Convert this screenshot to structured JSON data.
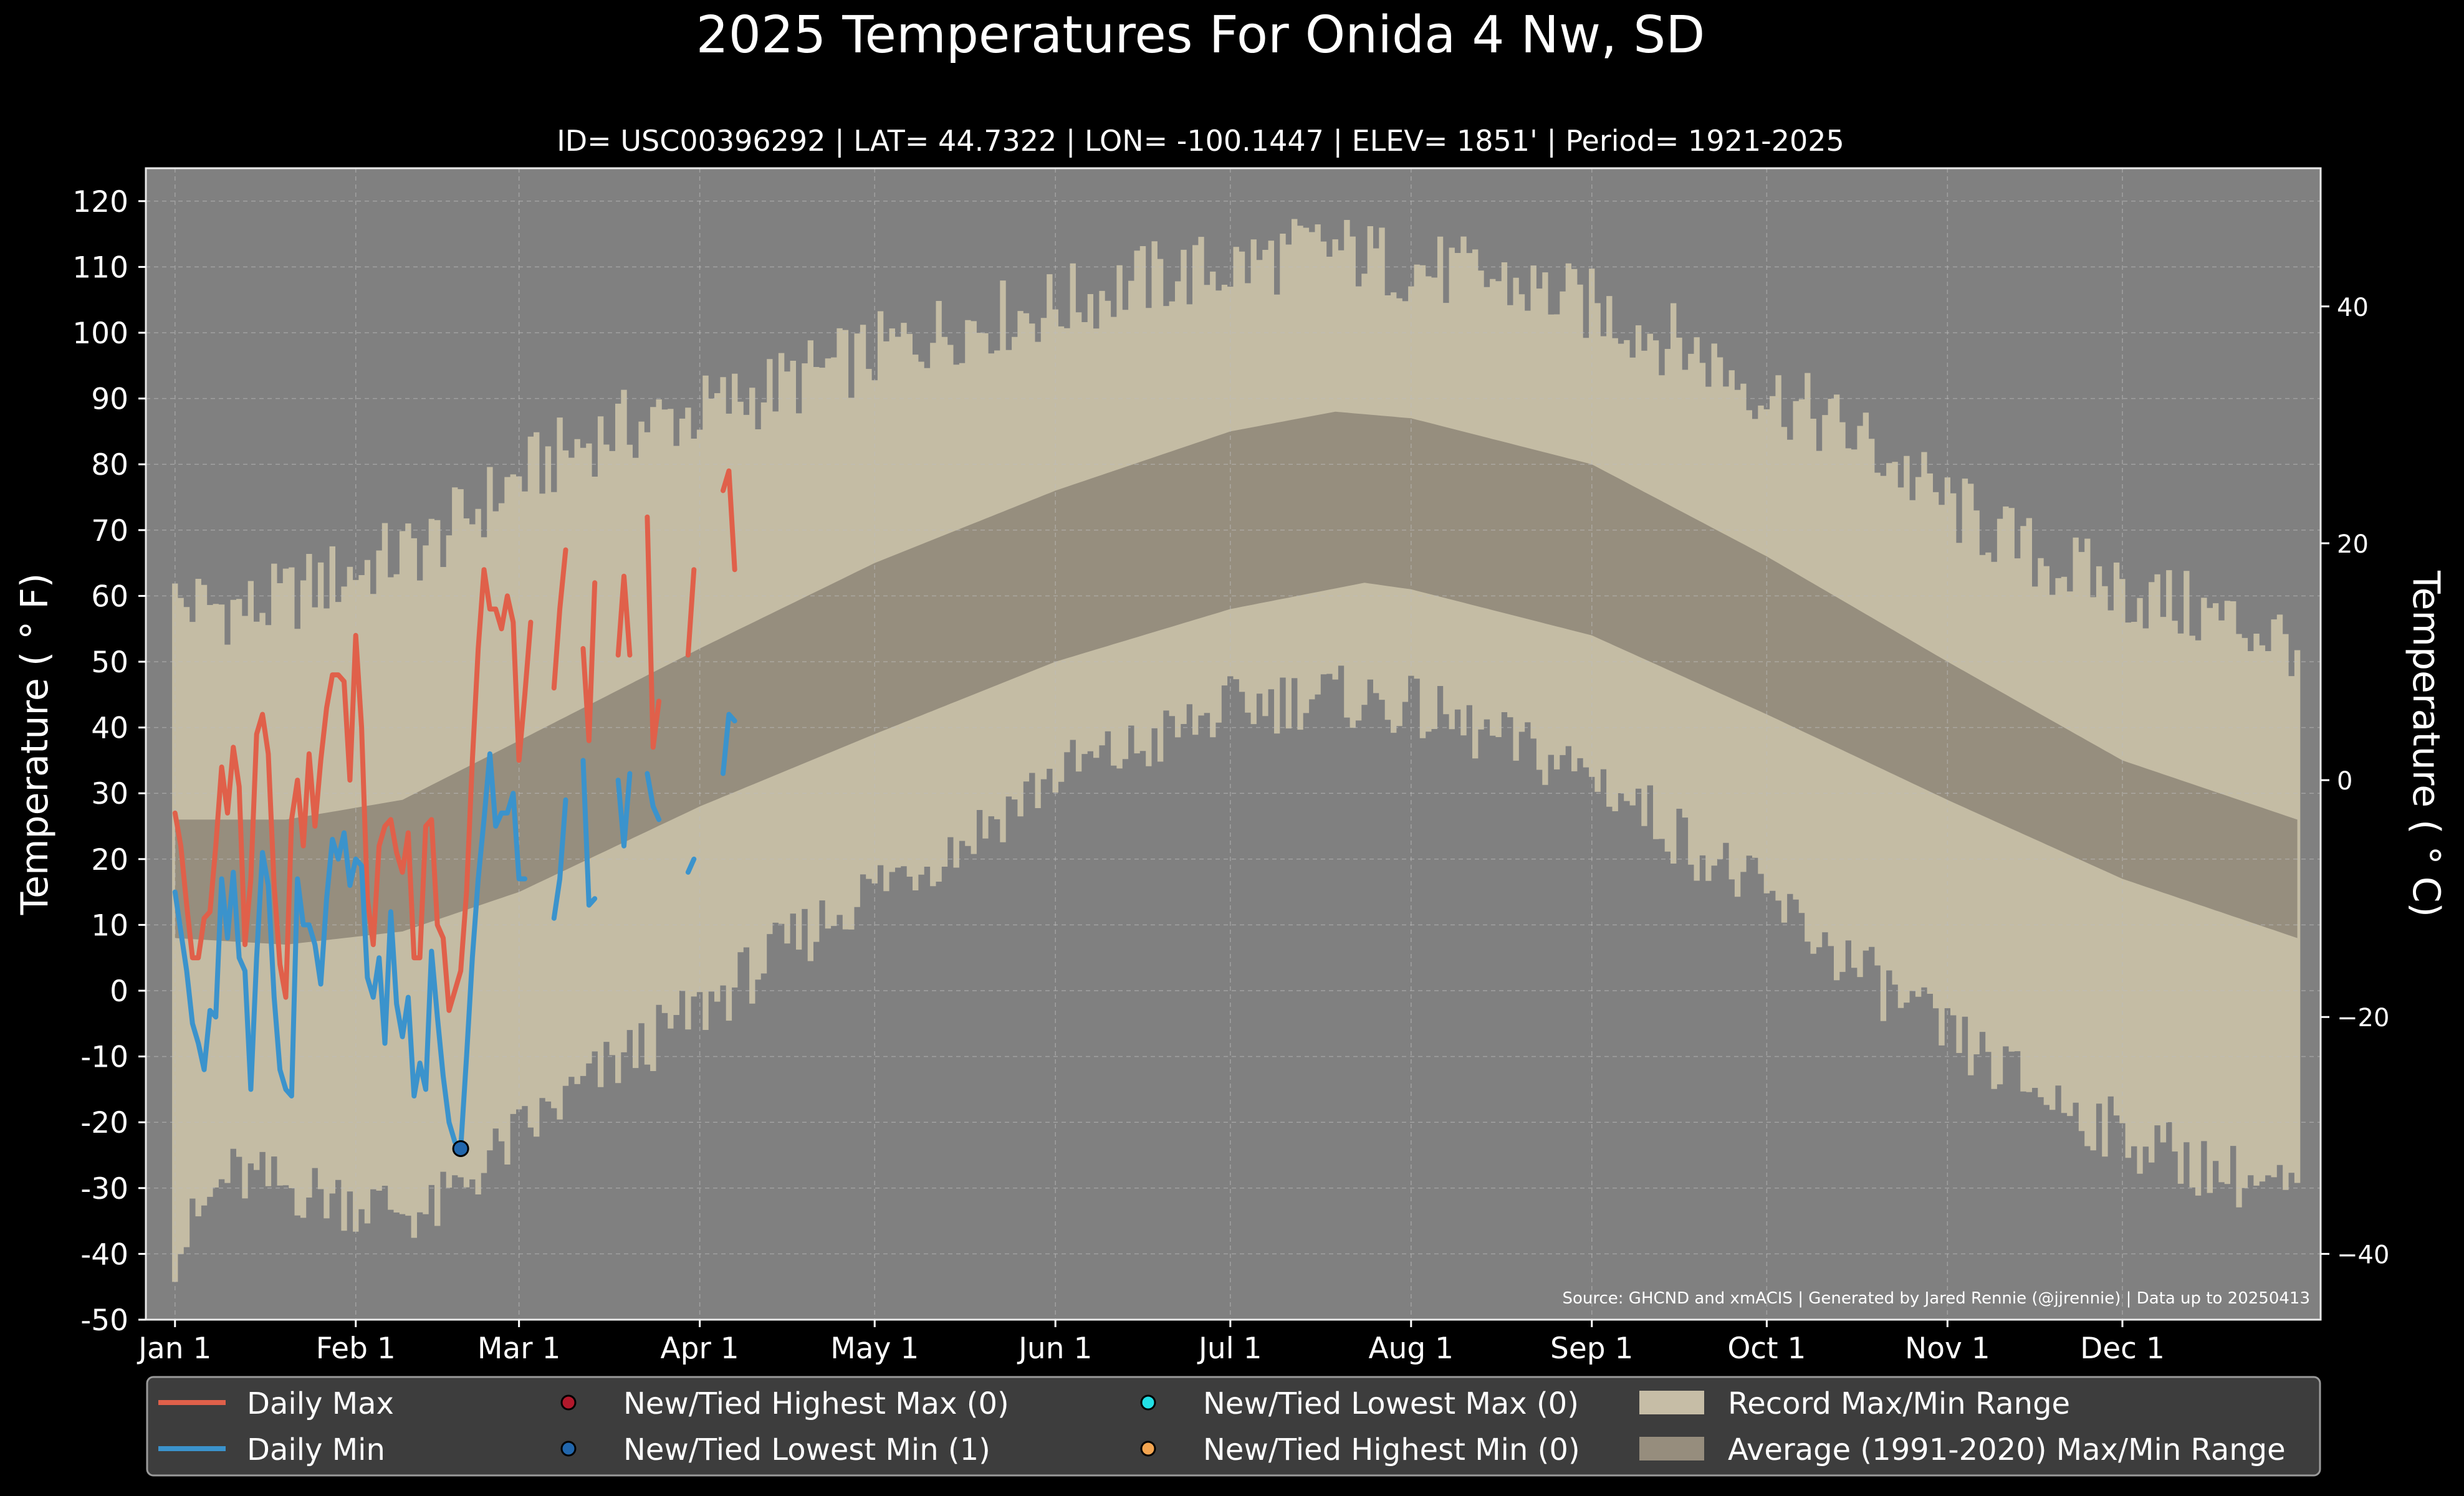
{
  "chart_data": {
    "type": "area",
    "title": "2025 Temperatures For Onida 4 Nw, SD",
    "subtitle": "ID= USC00396292 | LAT= 44.7322 | LON= -100.1447 | ELEV= 1851' | Period= 1921-2025",
    "ylabel_left": "Temperature ( ° F)",
    "ylabel_right": "Temperature ( ° C)",
    "source_note": "Source: GHCND and xmACIS | Generated by Jared Rennie (@jjrennie) | Data up to 20250413",
    "ylim": [
      -50,
      125
    ],
    "xlim_day": [
      -4,
      369
    ],
    "yticks": [
      -50,
      -40,
      -30,
      -20,
      -10,
      0,
      10,
      20,
      30,
      40,
      50,
      60,
      70,
      80,
      90,
      100,
      110,
      120
    ],
    "yticks_c": [
      -40,
      -20,
      0,
      20,
      40
    ],
    "month_ticks": [
      {
        "label": "Jan 1",
        "day": 1
      },
      {
        "label": "Feb 1",
        "day": 32
      },
      {
        "label": "Mar 1",
        "day": 60
      },
      {
        "label": "Apr 1",
        "day": 91
      },
      {
        "label": "May 1",
        "day": 121
      },
      {
        "label": "Jun 1",
        "day": 152
      },
      {
        "label": "Jul 1",
        "day": 182
      },
      {
        "label": "Aug 1",
        "day": 213
      },
      {
        "label": "Sep 1",
        "day": 244
      },
      {
        "label": "Oct 1",
        "day": 274
      },
      {
        "label": "Nov 1",
        "day": 305
      },
      {
        "label": "Dec 1",
        "day": 335
      }
    ],
    "record_max_anchors": [
      [
        1,
        59
      ],
      [
        15,
        58
      ],
      [
        32,
        64
      ],
      [
        45,
        68
      ],
      [
        60,
        78
      ],
      [
        75,
        85
      ],
      [
        91,
        88
      ],
      [
        105,
        92
      ],
      [
        121,
        97
      ],
      [
        135,
        101
      ],
      [
        152,
        104
      ],
      [
        167,
        108
      ],
      [
        182,
        110
      ],
      [
        198,
        113
      ],
      [
        213,
        110
      ],
      [
        228,
        108
      ],
      [
        244,
        104
      ],
      [
        260,
        98
      ],
      [
        274,
        91
      ],
      [
        290,
        84
      ],
      [
        305,
        74
      ],
      [
        320,
        66
      ],
      [
        335,
        61
      ],
      [
        350,
        57
      ],
      [
        365,
        53
      ]
    ],
    "record_min_anchors": [
      [
        1,
        -40
      ],
      [
        10,
        -28
      ],
      [
        32,
        -32
      ],
      [
        45,
        -34
      ],
      [
        52,
        -28
      ],
      [
        60,
        -22
      ],
      [
        75,
        -12
      ],
      [
        91,
        -3
      ],
      [
        105,
        6
      ],
      [
        121,
        16
      ],
      [
        135,
        22
      ],
      [
        152,
        33
      ],
      [
        167,
        37
      ],
      [
        182,
        43
      ],
      [
        198,
        45
      ],
      [
        213,
        43
      ],
      [
        228,
        38
      ],
      [
        244,
        33
      ],
      [
        260,
        23
      ],
      [
        274,
        14
      ],
      [
        290,
        3
      ],
      [
        305,
        -7
      ],
      [
        320,
        -15
      ],
      [
        335,
        -22
      ],
      [
        350,
        -27
      ],
      [
        365,
        -31
      ]
    ],
    "normal_max_anchors": [
      [
        1,
        26
      ],
      [
        20,
        26
      ],
      [
        40,
        29
      ],
      [
        60,
        38
      ],
      [
        91,
        52
      ],
      [
        121,
        65
      ],
      [
        152,
        76
      ],
      [
        182,
        85
      ],
      [
        200,
        88
      ],
      [
        213,
        87
      ],
      [
        244,
        80
      ],
      [
        274,
        66
      ],
      [
        305,
        50
      ],
      [
        335,
        35
      ],
      [
        365,
        26
      ]
    ],
    "normal_min_anchors": [
      [
        1,
        8
      ],
      [
        20,
        7
      ],
      [
        40,
        9
      ],
      [
        60,
        15
      ],
      [
        91,
        28
      ],
      [
        121,
        39
      ],
      [
        152,
        50
      ],
      [
        182,
        58
      ],
      [
        205,
        62
      ],
      [
        213,
        61
      ],
      [
        244,
        54
      ],
      [
        274,
        42
      ],
      [
        305,
        29
      ],
      [
        335,
        17
      ],
      [
        365,
        8
      ]
    ],
    "series": [
      {
        "name": "Daily Max",
        "color": "#e0604a",
        "points": [
          [
            1,
            27
          ],
          [
            2,
            22
          ],
          [
            3,
            13
          ],
          [
            4,
            5
          ],
          [
            5,
            5
          ],
          [
            6,
            11
          ],
          [
            7,
            12
          ],
          [
            8,
            22
          ],
          [
            9,
            34
          ],
          [
            10,
            27
          ],
          [
            11,
            37
          ],
          [
            12,
            31
          ],
          [
            13,
            7
          ],
          [
            14,
            17
          ],
          [
            15,
            39
          ],
          [
            16,
            42
          ],
          [
            17,
            36
          ],
          [
            18,
            16
          ],
          [
            19,
            4
          ],
          [
            20,
            -1
          ],
          [
            21,
            26
          ],
          [
            22,
            32
          ],
          [
            23,
            22
          ],
          [
            24,
            36
          ],
          [
            25,
            25
          ],
          [
            26,
            35
          ],
          [
            27,
            43
          ],
          [
            28,
            48
          ],
          [
            29,
            48
          ],
          [
            30,
            47
          ],
          [
            31,
            32
          ],
          [
            32,
            54
          ],
          [
            33,
            40
          ],
          [
            34,
            14
          ],
          [
            35,
            7
          ],
          [
            36,
            22
          ],
          [
            37,
            25
          ],
          [
            38,
            26
          ],
          [
            39,
            21
          ],
          [
            40,
            18
          ],
          [
            41,
            24
          ],
          [
            42,
            5
          ],
          [
            43,
            5
          ],
          [
            44,
            25
          ],
          [
            45,
            26
          ],
          [
            46,
            10
          ],
          [
            47,
            8
          ],
          [
            48,
            -3
          ],
          [
            49,
            0
          ],
          [
            50,
            3
          ],
          [
            51,
            15
          ],
          [
            52,
            35
          ],
          [
            53,
            52
          ],
          [
            54,
            64
          ],
          [
            55,
            58
          ],
          [
            56,
            58
          ],
          [
            57,
            55
          ],
          [
            58,
            60
          ],
          [
            59,
            56
          ],
          [
            60,
            35
          ],
          [
            61,
            45
          ],
          [
            62,
            56
          ],
          null,
          [
            66,
            46
          ],
          [
            67,
            58
          ],
          [
            68,
            67
          ],
          null,
          [
            71,
            52
          ],
          [
            72,
            38
          ],
          [
            73,
            62
          ],
          null,
          [
            77,
            51
          ],
          [
            78,
            63
          ],
          [
            79,
            51
          ],
          null,
          [
            82,
            72
          ],
          [
            83,
            37
          ],
          [
            84,
            44
          ],
          null,
          [
            89,
            51
          ],
          [
            90,
            64
          ],
          null,
          [
            95,
            76
          ],
          [
            96,
            79
          ],
          [
            97,
            64
          ]
        ]
      },
      {
        "name": "Daily Min",
        "color": "#3b93cc",
        "points": [
          [
            1,
            15
          ],
          [
            2,
            9
          ],
          [
            3,
            3
          ],
          [
            4,
            -5
          ],
          [
            5,
            -8
          ],
          [
            6,
            -12
          ],
          [
            7,
            -3
          ],
          [
            8,
            -4
          ],
          [
            9,
            17
          ],
          [
            10,
            8
          ],
          [
            11,
            18
          ],
          [
            12,
            5
          ],
          [
            13,
            3
          ],
          [
            14,
            -15
          ],
          [
            15,
            5
          ],
          [
            16,
            21
          ],
          [
            17,
            16
          ],
          [
            18,
            -1
          ],
          [
            19,
            -12
          ],
          [
            20,
            -15
          ],
          [
            21,
            -16
          ],
          [
            22,
            17
          ],
          [
            23,
            10
          ],
          [
            24,
            10
          ],
          [
            25,
            7
          ],
          [
            26,
            1
          ],
          [
            27,
            14
          ],
          [
            28,
            23
          ],
          [
            29,
            20
          ],
          [
            30,
            24
          ],
          [
            31,
            16
          ],
          [
            32,
            20
          ],
          [
            33,
            19
          ],
          [
            34,
            2
          ],
          [
            35,
            -1
          ],
          [
            36,
            5
          ],
          [
            37,
            -8
          ],
          [
            38,
            12
          ],
          [
            39,
            -2
          ],
          [
            40,
            -7
          ],
          [
            41,
            -1
          ],
          [
            42,
            -16
          ],
          [
            43,
            -11
          ],
          [
            44,
            -15
          ],
          [
            45,
            6
          ],
          [
            46,
            -4
          ],
          [
            47,
            -13
          ],
          [
            48,
            -20
          ],
          [
            49,
            -23
          ],
          [
            50,
            -24
          ],
          [
            51,
            -10
          ],
          [
            52,
            5
          ],
          [
            53,
            17
          ],
          [
            54,
            26
          ],
          [
            55,
            36
          ],
          [
            56,
            25
          ],
          [
            57,
            27
          ],
          [
            58,
            27
          ],
          [
            59,
            30
          ],
          [
            60,
            17
          ],
          [
            61,
            17
          ],
          null,
          [
            66,
            11
          ],
          [
            67,
            17
          ],
          [
            68,
            29
          ],
          null,
          [
            71,
            35
          ],
          [
            72,
            13
          ],
          [
            73,
            14
          ],
          null,
          [
            77,
            32
          ],
          [
            78,
            22
          ],
          [
            79,
            33
          ],
          null,
          [
            82,
            33
          ],
          [
            83,
            28
          ],
          [
            84,
            26
          ],
          null,
          [
            89,
            18
          ],
          [
            90,
            20
          ],
          null,
          [
            95,
            33
          ],
          [
            96,
            42
          ],
          [
            97,
            41
          ]
        ]
      }
    ],
    "record_markers": [
      {
        "label": "New/Tied Lowest Min (1)",
        "day": 50,
        "value": -24
      }
    ],
    "legend": {
      "placement": "bottom",
      "items": [
        {
          "label": "Daily Max",
          "kind": "line",
          "color": "#e0604a"
        },
        {
          "label": "Daily Min",
          "kind": "line",
          "color": "#3b93cc"
        },
        {
          "label": "New/Tied Highest Max (0)",
          "kind": "dot",
          "color": "#b2182b"
        },
        {
          "label": "New/Tied Lowest Min (1)",
          "kind": "dot",
          "color": "#2166ac"
        },
        {
          "label": "New/Tied Lowest Max (0)",
          "kind": "dot",
          "color": "#22e0e6"
        },
        {
          "label": "New/Tied Highest Min (0)",
          "kind": "dot",
          "color": "#f4a550"
        },
        {
          "label": "Record Max/Min Range",
          "kind": "patch",
          "color": "#c6bda6"
        },
        {
          "label": "Average (1991-2020) Max/Min Range",
          "kind": "patch",
          "color": "#968d7d"
        }
      ]
    },
    "colors": {
      "background": "#000000",
      "plot_background": "#808080",
      "record_band": "#c4bca4",
      "normal_band": "#968e7e",
      "grid": "#bdbdbd"
    },
    "grid": true
  }
}
